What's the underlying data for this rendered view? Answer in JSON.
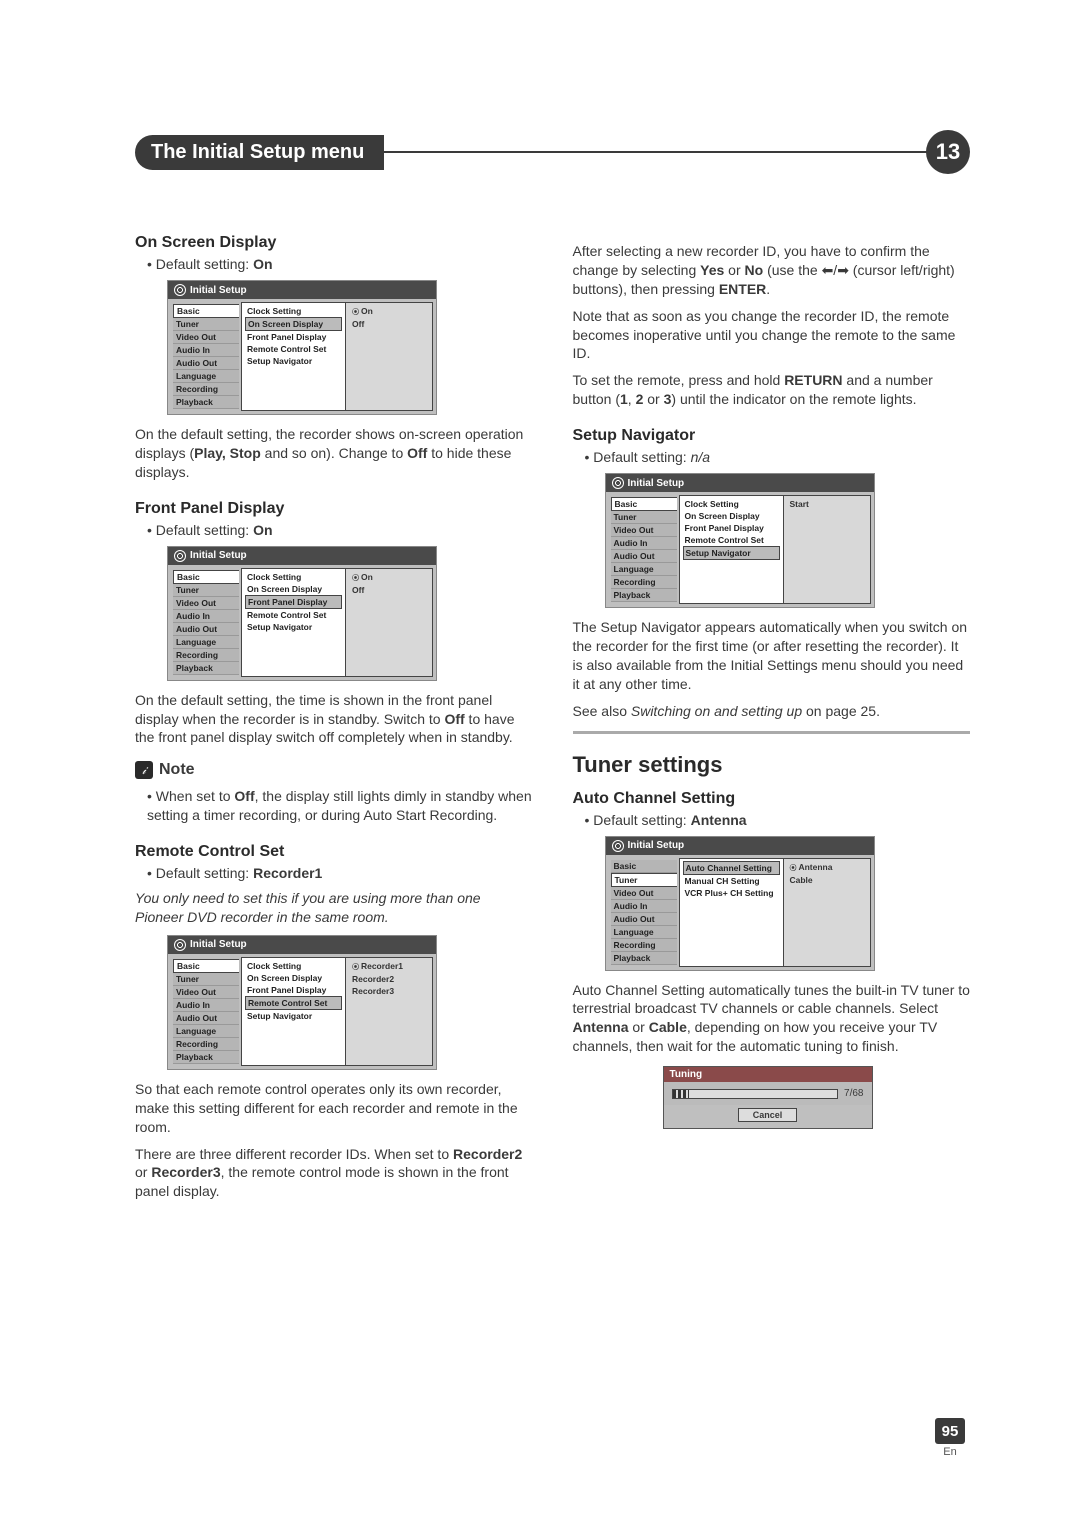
{
  "chapter_title": "The Initial Setup menu",
  "chapter_number": "13",
  "page_number": "95",
  "page_lang": "En",
  "setup_title": "Initial Setup",
  "left_menu": [
    "Basic",
    "Tuner",
    "Video Out",
    "Audio In",
    "Audio Out",
    "Language",
    "Recording",
    "Playback"
  ],
  "mid_basic": [
    "Clock Setting",
    "On Screen Display",
    "Front Panel Display",
    "Remote Control Set",
    "Setup Navigator"
  ],
  "mid_tuner": [
    "Auto Channel Setting",
    "Manual CH Setting",
    "VCR Plus+ CH Setting"
  ],
  "left": {
    "osd": {
      "title": "On Screen Display",
      "default": "Default setting: ",
      "default_val": "On",
      "opts": [
        "On",
        "Off"
      ],
      "p1a": "On the default setting, the recorder shows on-screen operation displays (",
      "p1b": "Play, Stop",
      "p1c": " and so on). Change to ",
      "p1d": "Off",
      "p1e": " to hide these displays."
    },
    "fpd": {
      "title": "Front Panel Display",
      "default": "Default setting: ",
      "default_val": "On",
      "opts": [
        "On",
        "Off"
      ],
      "p1a": "On the default setting, the time is shown in the front panel display when the recorder is in standby. Switch to ",
      "p1b": "Off",
      "p1c": " to have the front panel display switch off completely when in standby.",
      "note_label": "Note",
      "note_a": "When set to ",
      "note_b": "Off",
      "note_c": ", the display still lights dimly in standby when setting a timer recording, or during Auto Start Recording."
    },
    "rcs": {
      "title": "Remote Control Set",
      "default": "Default setting: ",
      "default_val": "Recorder1",
      "hint": "You only need to set this if you are using more than one Pioneer DVD recorder in the same room.",
      "opts": [
        "Recorder1",
        "Recorder2",
        "Recorder3"
      ],
      "p1": "So that each remote control operates only its own recorder, make this setting different for each recorder and remote in the room.",
      "p2a": "There are three different recorder IDs. When set to ",
      "p2b": "Recorder2",
      "p2c": " or ",
      "p2d": "Recorder3",
      "p2e": ", the remote control mode is shown in the front panel display."
    }
  },
  "right": {
    "p1a": "After selecting a new recorder ID, you have to confirm the change by selecting ",
    "p1b": "Yes",
    "p1c": " or ",
    "p1d": "No",
    "p1e": " (use the ",
    "p1f": " (cursor left/right) buttons), then pressing ",
    "p1g": "ENTER",
    "p1h": ".",
    "p2": "Note that as soon as you change the recorder ID, the remote becomes inoperative until you change the remote to the same ID.",
    "p3a": "To set the remote, press and hold ",
    "p3b": "RETURN",
    "p3c": " and a number button (",
    "p3d": "1",
    "p3e": ", ",
    "p3f": "2",
    "p3g": " or ",
    "p3h": "3",
    "p3i": ") until the indicator on the remote lights.",
    "sn": {
      "title": "Setup Navigator",
      "default": "Default setting: ",
      "default_val": "n/a",
      "opts": [
        "Start"
      ],
      "p1": "The Setup Navigator appears automatically when you switch on the recorder for the first time (or after resetting the recorder). It is also available from the Initial Settings menu should you need it at any other time.",
      "see_a": "See also ",
      "see_b": "Switching on and setting up",
      "see_c": " on page 25."
    },
    "tuner_heading": "Tuner settings",
    "acs": {
      "title": "Auto Channel Setting",
      "default": "Default setting: ",
      "default_val": "Antenna",
      "opts": [
        "Antenna",
        "Cable"
      ],
      "p1a": "Auto Channel Setting automatically tunes the built-in TV tuner to terrestrial broadcast TV channels or cable channels. Select ",
      "p1b": "Antenna",
      "p1c": " or ",
      "p1d": "Cable",
      "p1e": ", depending on how you receive your TV channels, then wait for the automatic tuning to finish."
    },
    "tuning": {
      "label": "Tuning",
      "progress_pct": 10,
      "counter": "7/68",
      "cancel": "Cancel"
    }
  },
  "colors": {
    "text": "#3a3a3a",
    "header_bg": "#3a3a3a",
    "setup_bg": "#bfbfbf",
    "setup_title_bg": "#4a4a4a",
    "tuning_head_bg": "#8a4a4a"
  }
}
